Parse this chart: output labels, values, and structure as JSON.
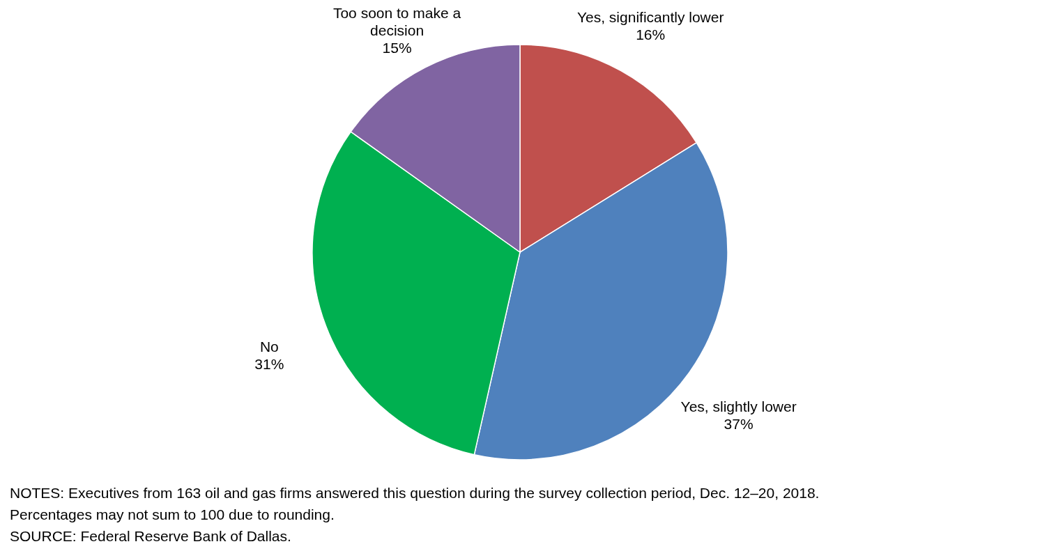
{
  "chart_data": {
    "type": "pie",
    "categories": [
      "Yes, significantly lower",
      "Yes, slightly lower",
      "No",
      "Too soon to make a decision"
    ],
    "values": [
      16,
      37,
      31,
      15
    ],
    "colors": [
      "#c0504d",
      "#4f81bd",
      "#00b050",
      "#8064a2"
    ],
    "value_labels": [
      "16%",
      "37%",
      "31%",
      "15%"
    ],
    "annotations": [
      "NOTES: Executives from 163 oil and gas firms answered this question during the survey collection period, Dec. 12–20, 2018. Percentages may not sum to 100 due to rounding.",
      "SOURCE: Federal Reserve Bank of Dallas."
    ]
  }
}
